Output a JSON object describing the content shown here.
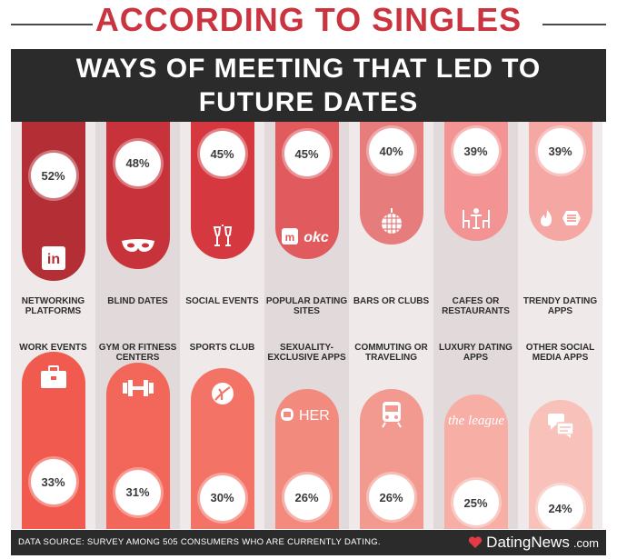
{
  "header": {
    "title": "ACCORDING TO SINGLES",
    "subtitle": "WAYS OF MEETING THAT LED TO FUTURE DATES"
  },
  "colors": {
    "banner": "#2b2b2b",
    "title": "#c9343f",
    "col_bg_a": "#efe9e9",
    "col_bg_b": "#e1d9da"
  },
  "chart_data": {
    "type": "bar",
    "title": "WAYS OF MEETING THAT LED TO FUTURE DATES",
    "unit": "%",
    "rows": [
      {
        "position": "top",
        "categories": [
          "NETWORKING PLATFORMS",
          "BLIND DATES",
          "SOCIAL EVENTS",
          "POPULAR DATING SITES",
          "BARS OR CLUBS",
          "CAFES OR RESTAURANTS",
          "TRENDY DATING APPS"
        ],
        "values": [
          52,
          48,
          45,
          45,
          40,
          39,
          39
        ],
        "value_labels": [
          "52%",
          "48%",
          "45%",
          "45%",
          "40%",
          "39%",
          "39%"
        ],
        "colors": [
          "#b42e35",
          "#c8323b",
          "#d5393f",
          "#e05a5e",
          "#e77c7c",
          "#f39393",
          "#f5a7a4"
        ],
        "icons": [
          "linkedin-icon",
          "mask-icon",
          "champagne-icon",
          "meetic-okc-icon",
          "disco-ball-icon",
          "cafe-table-icon",
          "tinder-bumble-icon"
        ],
        "icon_text": [
          "in",
          "",
          "",
          "okc",
          "",
          "",
          ""
        ]
      },
      {
        "position": "bottom",
        "categories": [
          "WORK EVENTS",
          "GYM OR FITNESS CENTERS",
          "SPORTS CLUB",
          "SEXUALITY-EXCLUSIVE APPS",
          "COMMUTING OR TRAVELING",
          "LUXURY DATING APPS",
          "OTHER SOCIAL MEDIA APPS"
        ],
        "values": [
          33,
          31,
          30,
          26,
          26,
          25,
          24
        ],
        "value_labels": [
          "33%",
          "31%",
          "30%",
          "26%",
          "26%",
          "25%",
          "24%"
        ],
        "colors": [
          "#f05a4f",
          "#f3665a",
          "#f37466",
          "#f28a7e",
          "#f29a90",
          "#f6aea5",
          "#f8c1b9"
        ],
        "icons": [
          "briefcase-icon",
          "dumbbell-icon",
          "sports-ball-icon",
          "her-icon",
          "train-icon",
          "the-league-icon",
          "social-chat-icon"
        ],
        "icon_text": [
          "",
          "",
          "",
          "HER",
          "",
          "the league",
          ""
        ]
      }
    ]
  },
  "footer": {
    "source": "DATA SOURCE: SURVEY AMONG 505 CONSUMERS WHO ARE CURRENTLY DATING.",
    "brand": "DatingNews",
    "brand_suffix": ".com"
  }
}
